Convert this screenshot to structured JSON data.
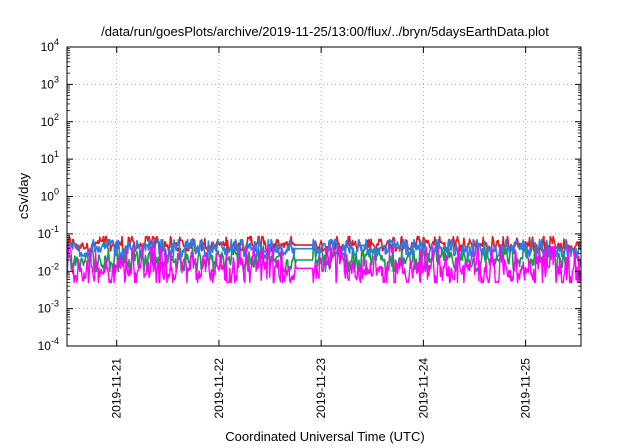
{
  "chart_data": {
    "type": "line",
    "title": "/data/run/goesPlots/archive/2019-11-25/13:00/flux/../bryn/5daysEarthData.plot",
    "xlabel": "Coordinated Universal Time (UTC)",
    "ylabel": "cSv/day",
    "yscale": "log",
    "ylim": [
      0.0001,
      10000
    ],
    "ytick_labels": [
      {
        "base": "10",
        "exp": "-4"
      },
      {
        "base": "10",
        "exp": "-3"
      },
      {
        "base": "10",
        "exp": "-2"
      },
      {
        "base": "10",
        "exp": "-1"
      },
      {
        "base": "10",
        "exp": "0"
      },
      {
        "base": "10",
        "exp": "1"
      },
      {
        "base": "10",
        "exp": "2"
      },
      {
        "base": "10",
        "exp": "3"
      },
      {
        "base": "10",
        "exp": "4"
      }
    ],
    "xlim": [
      "2019-11-20 12:20",
      "2019-11-25 13:00"
    ],
    "xtick_labels": [
      "2019-11-21",
      "2019-11-22",
      "2019-11-23",
      "2019-11-24",
      "2019-11-25"
    ],
    "grid": true,
    "grid_style": "dotted",
    "series_colors": [
      "#e41a1c",
      "#1a9850",
      "#2c7be5",
      "#ff00ff"
    ],
    "series": [
      {
        "color": "#e41a1c",
        "typical": 0.05,
        "spread": [
          0.035,
          0.085
        ]
      },
      {
        "color": "#1a9850",
        "typical": 0.02,
        "spread": [
          0.01,
          0.04
        ]
      },
      {
        "color": "#2c7be5",
        "typical": 0.04,
        "spread": [
          0.025,
          0.07
        ]
      },
      {
        "color": "#ff00ff",
        "typical": 0.012,
        "spread": [
          0.005,
          0.045
        ]
      }
    ]
  }
}
